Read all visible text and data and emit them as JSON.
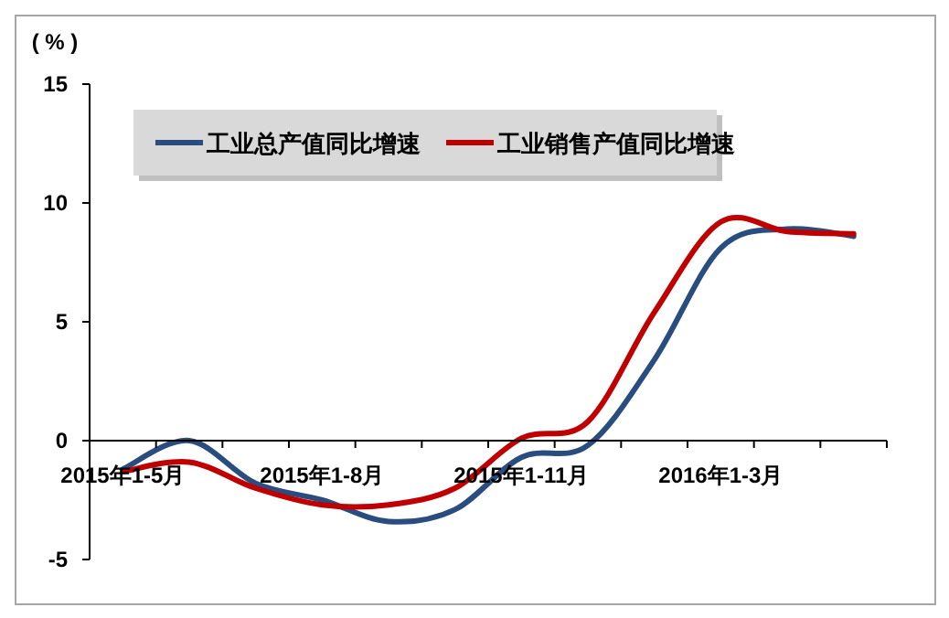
{
  "chart_data": {
    "type": "line",
    "ylabel": "( % )",
    "categories": [
      "2015年1-5月",
      null,
      null,
      "2015年1-8月",
      null,
      null,
      "2015年1-11月",
      null,
      null,
      "2016年1-3月",
      null,
      null
    ],
    "series": [
      {
        "name": "工业总产值同比增速",
        "color": "#2a4d80",
        "values": [
          -1.2,
          0.0,
          -1.8,
          -2.5,
          -3.4,
          -2.9,
          -0.7,
          -0.2,
          3.4,
          8.1,
          8.9,
          8.6
        ]
      },
      {
        "name": "工业销售产值同比增速",
        "color": "#c00000",
        "values": [
          -1.3,
          -0.9,
          -2.0,
          -2.7,
          -2.7,
          -2.0,
          0.1,
          0.8,
          5.4,
          9.2,
          8.8,
          8.7
        ]
      }
    ],
    "ylim": [
      -5,
      15
    ],
    "yticks": [
      -5,
      0,
      5,
      10,
      15
    ],
    "grid": false,
    "legend": "top"
  }
}
